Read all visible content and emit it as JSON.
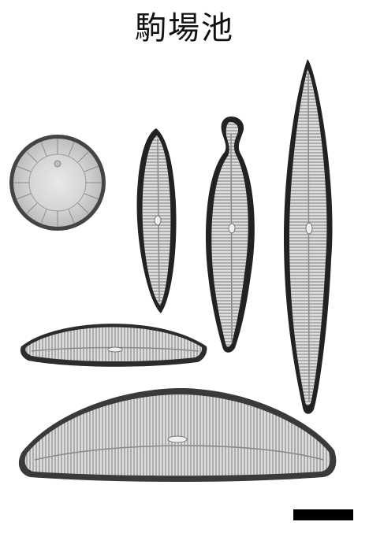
{
  "title": "駒場池",
  "specimens": [
    {
      "name": "centric-diatom",
      "shape": "circle"
    },
    {
      "name": "pennate-diatom-narrow",
      "shape": "lanceolate"
    },
    {
      "name": "pennate-diatom-capitate",
      "shape": "capitate-lanceolate"
    },
    {
      "name": "pennate-diatom-long",
      "shape": "long-lanceolate"
    },
    {
      "name": "cymbelloid-diatom-small",
      "shape": "arcuate"
    },
    {
      "name": "cymbelloid-diatom-large",
      "shape": "arcuate"
    }
  ],
  "colors": {
    "background": "#ffffff",
    "valve_fill": "#d9d9d9",
    "valve_edge": "#2a2a2a",
    "striae": "#7a7a7a",
    "scale_bar": "#000000"
  }
}
